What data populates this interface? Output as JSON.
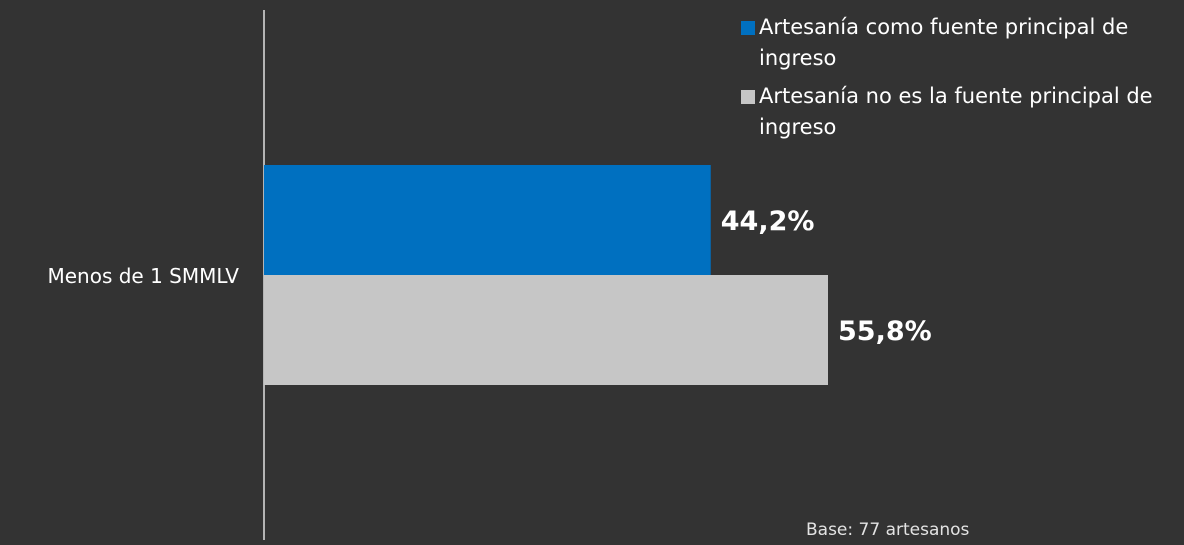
{
  "chart_data": {
    "type": "bar",
    "orientation": "horizontal",
    "categories": [
      "Menos de 1 SMMLV"
    ],
    "series": [
      {
        "name": "Artesanía como fuente principal de ingreso",
        "values": [
          44.2
        ],
        "labels": [
          "44,2%"
        ],
        "color": "#0070c0"
      },
      {
        "name": "Artesanía no es la fuente principal de ingreso",
        "values": [
          55.8
        ],
        "labels": [
          "55,8%"
        ],
        "color": "#c6c6c6"
      }
    ],
    "legend_position": "top-right",
    "grid": false,
    "note": "Base: 77 artesanos"
  },
  "colors": {
    "background": "#333333",
    "axis": "#e0e0e0",
    "text": "#ffffff"
  }
}
